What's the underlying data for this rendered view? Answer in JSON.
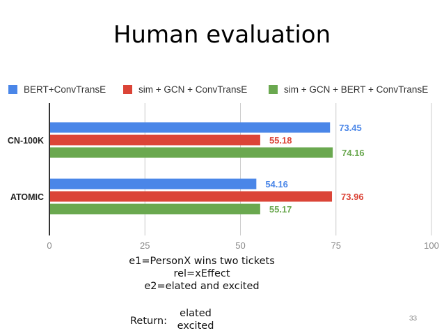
{
  "title": "Human evaluation",
  "colors": {
    "series1": "#4a86e8",
    "series2": "#db4437",
    "series3": "#6aa84f",
    "grid": "#cccccc",
    "axis": "#333333"
  },
  "chart_data": {
    "type": "bar",
    "orientation": "horizontal",
    "categories": [
      "CN-100K",
      "ATOMIC"
    ],
    "series": [
      {
        "name": "BERT+ConvTransE",
        "values": [
          73.45,
          54.16
        ]
      },
      {
        "name": "sim + GCN + ConvTransE",
        "values": [
          55.18,
          73.96
        ]
      },
      {
        "name": "sim + GCN + BERT + ConvTransE",
        "values": [
          74.16,
          55.17
        ]
      }
    ],
    "xticks": [
      0,
      25,
      50,
      75,
      100
    ],
    "xlim": [
      0,
      100
    ],
    "grid": true,
    "legend_position": "top"
  },
  "example": {
    "lines": [
      "e1=PersonX wins two tickets",
      "rel=xEffect",
      "e2=elated and excited"
    ],
    "return_label": "Return:",
    "return_values": [
      "elated",
      "excited"
    ]
  },
  "page_number": "33"
}
